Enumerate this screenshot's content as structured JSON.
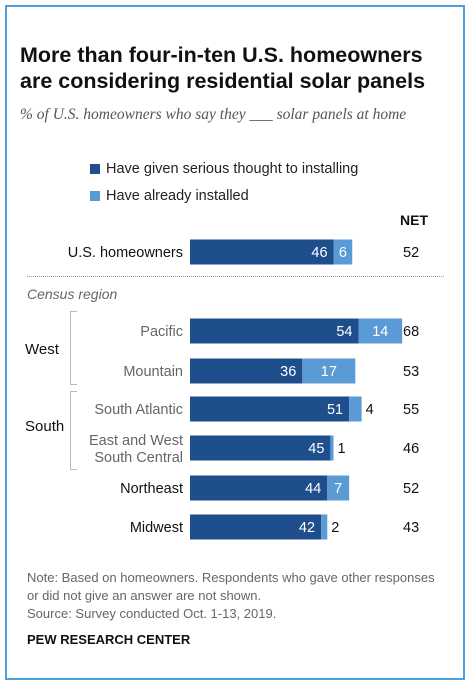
{
  "title": "More than four-in-ten U.S. homeowners are considering residential solar panels",
  "subtitle": "% of U.S. homeowners who say they ___ solar panels at home",
  "net_header": "NET",
  "section_label": "Census region",
  "groups": {
    "west": "West",
    "south": "South"
  },
  "note": "Note: Based on homeowners. Respondents who gave other responses or did not give an answer are not shown.",
  "source": "Source: Survey conducted Oct. 1-13, 2019.",
  "org": "PEW RESEARCH CENTER",
  "colors": {
    "thought": "#1f4e8c",
    "installed": "#5b9bd5",
    "label_muted": "#666666",
    "label_dark": "#111111"
  },
  "chart_data": {
    "type": "bar",
    "orientation": "horizontal",
    "stacked": true,
    "categories": [
      "U.S. homeowners",
      "Pacific",
      "Mountain",
      "South Atlantic",
      "East and West South Central",
      "Northeast",
      "Midwest"
    ],
    "series": [
      {
        "name": "Have given serious thought to installing",
        "values": [
          46,
          54,
          36,
          51,
          45,
          44,
          42
        ]
      },
      {
        "name": "Have already installed",
        "values": [
          6,
          14,
          17,
          4,
          1,
          7,
          2
        ]
      }
    ],
    "net": [
      52,
      68,
      53,
      55,
      46,
      52,
      43
    ],
    "xlim": [
      0,
      80
    ],
    "grid": false,
    "legend_position": "top-left"
  }
}
